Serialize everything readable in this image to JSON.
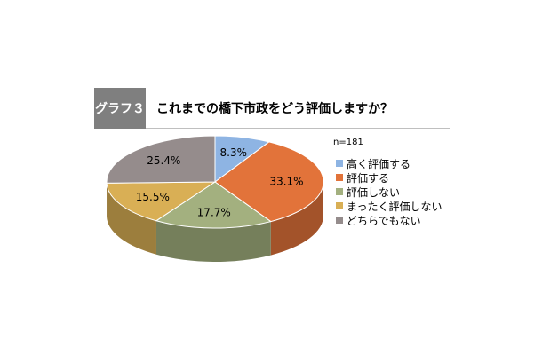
{
  "header": {
    "badge": "グラフ３",
    "question": "これまでの橋下市政をどう評価しますか？"
  },
  "sample_size": "n=181",
  "chart_data": {
    "type": "pie",
    "title": "これまでの橋下市政をどう評価しますか？",
    "start_angle_deg": -90,
    "categories": [
      "高く評価する",
      "評価する",
      "評価しない",
      "まったく評価しない",
      "どちらでもない"
    ],
    "values": [
      8.3,
      33.1,
      17.7,
      15.5,
      25.4
    ],
    "value_labels": [
      "8.3%",
      "33.1%",
      "17.7%",
      "15.5%",
      "25.4%"
    ],
    "colors": [
      "#8eb4e3",
      "#e2733a",
      "#a3b07f",
      "#d9af55",
      "#958c8c"
    ],
    "legend_position": "right"
  }
}
